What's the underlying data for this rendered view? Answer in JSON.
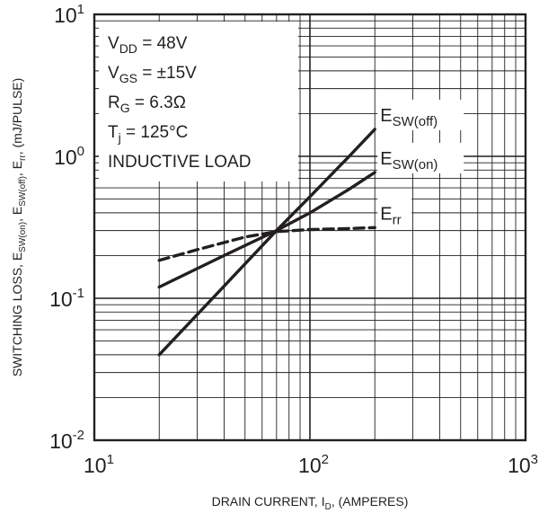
{
  "chart_data": {
    "type": "line",
    "x_scale": "log",
    "y_scale": "log",
    "xlim": [
      10,
      1000
    ],
    "ylim": [
      0.01,
      10
    ],
    "grid": true,
    "xlabel": {
      "main": "DRAIN CURRENT, I",
      "sub": "D",
      "tail": ", (AMPERES)"
    },
    "ylabel": {
      "parts": [
        {
          "t": "SWITCHING LOSS, E",
          "sub": false
        },
        {
          "t": "SW(on)",
          "sub": true
        },
        {
          "t": ", E",
          "sub": false
        },
        {
          "t": "SW(off)",
          "sub": true
        },
        {
          "t": ", E",
          "sub": false
        },
        {
          "t": "rr",
          "sub": true
        },
        {
          "t": ",  (mJ/PULSE)",
          "sub": false
        }
      ]
    },
    "x_ticks": [
      {
        "base": "10",
        "exp": "1",
        "value": 10
      },
      {
        "base": "10",
        "exp": "2",
        "value": 100
      },
      {
        "base": "10",
        "exp": "3",
        "value": 1000
      }
    ],
    "y_ticks": [
      {
        "base": "10",
        "exp": "1",
        "value": 10
      },
      {
        "base": "10",
        "exp": "0",
        "value": 1
      },
      {
        "base": "10",
        "exp": "-1",
        "value": 0.1
      },
      {
        "base": "10",
        "exp": "-2",
        "value": 0.01
      }
    ],
    "conditions": [
      {
        "main": "V",
        "sub": "DD",
        "rest": " = 48V"
      },
      {
        "main": "V",
        "sub": "GS",
        "rest": " = ±15V"
      },
      {
        "main": "R",
        "sub": "G",
        "rest": " = 6.3Ω"
      },
      {
        "main": "T",
        "sub": "j",
        "rest": " = 125°C"
      },
      {
        "main": "INDUCTIVE LOAD",
        "sub": "",
        "rest": ""
      }
    ],
    "series": [
      {
        "name": "E_SW(off)",
        "label_main": "E",
        "label_sub": "SW(off)",
        "dashed": false,
        "x": [
          20,
          40,
          70,
          100,
          150,
          200
        ],
        "y": [
          0.04,
          0.122,
          0.3,
          0.52,
          0.98,
          1.55
        ]
      },
      {
        "name": "E_SW(on)",
        "label_main": "E",
        "label_sub": "SW(on)",
        "dashed": false,
        "x": [
          20,
          40,
          70,
          100,
          150,
          200
        ],
        "y": [
          0.12,
          0.2,
          0.3,
          0.4,
          0.58,
          0.77
        ]
      },
      {
        "name": "E_rr",
        "label_main": "E",
        "label_sub": "rr",
        "dashed": true,
        "x": [
          20,
          30,
          50,
          70,
          100,
          150,
          200
        ],
        "y": [
          0.185,
          0.22,
          0.27,
          0.295,
          0.305,
          0.31,
          0.315
        ]
      }
    ],
    "colors": {
      "ink": "#231f20",
      "background": "#ffffff"
    }
  }
}
